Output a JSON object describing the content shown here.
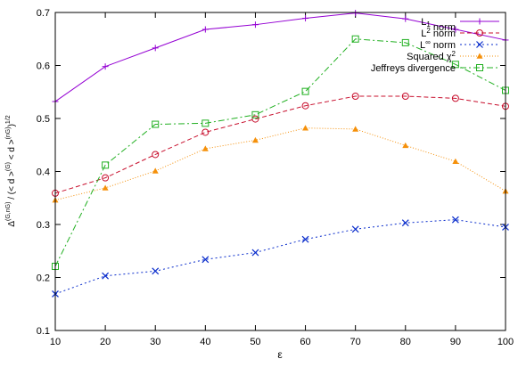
{
  "chart_data": {
    "type": "line",
    "title": "",
    "xlabel": "ε",
    "ylabel_parts": {
      "delta": "Δ",
      "delta_sup": "(G,nG)",
      "slash_open": " / (< d >",
      "g_sup": "(G)",
      "mid": " < d >",
      "ng_sup": "(nG)",
      "close": ")",
      "exp_sup": "1/2"
    },
    "x": [
      10,
      20,
      30,
      40,
      50,
      60,
      70,
      80,
      90,
      100
    ],
    "xlim": [
      10,
      100
    ],
    "ylim": [
      0.1,
      0.7
    ],
    "xticks": [
      "10",
      "20",
      "30",
      "40",
      "50",
      "60",
      "70",
      "80",
      "90",
      "100"
    ],
    "yticks": [
      "0.1",
      "0.2",
      "0.3",
      "0.4",
      "0.5",
      "0.6",
      "0.7"
    ],
    "grid": false,
    "legend_position": "top-right",
    "series": [
      {
        "name": "L1 norm",
        "legend": {
          "base": "L",
          "sub": "1",
          "sup": "",
          "tail": " norm"
        },
        "color": "#9400d3",
        "marker": "plus",
        "dash": "",
        "values": [
          0.532,
          0.598,
          0.633,
          0.668,
          0.677,
          0.689,
          0.699,
          0.688,
          0.668,
          0.648
        ]
      },
      {
        "name": "L2 norm",
        "legend": {
          "base": "L",
          "sub": "",
          "sup": "2",
          "tail": " norm"
        },
        "color": "#c8102e",
        "marker": "circle",
        "dash": "5,3",
        "values": [
          0.359,
          0.388,
          0.432,
          0.474,
          0.499,
          0.524,
          0.542,
          0.542,
          0.538,
          0.523
        ]
      },
      {
        "name": "L∞ norm",
        "legend": {
          "base": "L",
          "sub": "",
          "sup": "∞",
          "tail": " norm"
        },
        "color": "#0a2dcc",
        "marker": "x",
        "dash": "2,3",
        "values": [
          0.169,
          0.203,
          0.212,
          0.234,
          0.247,
          0.272,
          0.291,
          0.303,
          0.309,
          0.295
        ]
      },
      {
        "name": "Squared χ2",
        "legend": {
          "base": "Squared χ",
          "sub": "",
          "sup": "2",
          "tail": ""
        },
        "color": "#f5900a",
        "marker": "triangle",
        "dash": "1,2",
        "values": [
          0.346,
          0.369,
          0.401,
          0.443,
          0.459,
          0.482,
          0.48,
          0.449,
          0.419,
          0.363
        ]
      },
      {
        "name": "Jeffreys divergence",
        "legend": {
          "base": "Jeffreys divergence",
          "sub": "",
          "sup": "",
          "tail": ""
        },
        "color": "#22b022",
        "marker": "square",
        "dash": "7,3,2,3",
        "values": [
          0.221,
          0.412,
          0.489,
          0.491,
          0.507,
          0.551,
          0.65,
          0.643,
          0.602,
          0.553
        ]
      }
    ]
  }
}
